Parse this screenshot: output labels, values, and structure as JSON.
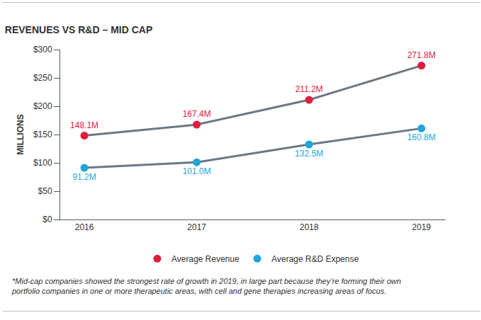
{
  "chart_data": {
    "type": "line",
    "title": "REVENUES VS R&D – MID CAP",
    "y_label": "MILLIONS",
    "categories": [
      "2016",
      "2017",
      "2018",
      "2019"
    ],
    "series": [
      {
        "name": "Average Revenue",
        "color": "#e31b3c",
        "marker": "circle",
        "values": [
          148.1,
          167.4,
          211.2,
          271.8
        ],
        "value_labels": [
          "148.1M",
          "167.4M",
          "211.2M",
          "271.8M"
        ]
      },
      {
        "name": "Average R&D Expense",
        "color": "#1ba6dc",
        "marker": "circle",
        "values": [
          91.2,
          101.0,
          132.5,
          160.8
        ],
        "value_labels": [
          "91.2M",
          "101.0M",
          "132.5M",
          "160.8M"
        ]
      }
    ],
    "ylim": [
      0,
      300
    ],
    "yticks": [
      {
        "value": 0,
        "label": "$0"
      },
      {
        "value": 50,
        "label": "$50"
      },
      {
        "value": 100,
        "label": "$100"
      },
      {
        "value": 150,
        "label": "$150"
      },
      {
        "value": 200,
        "label": "$200"
      },
      {
        "value": 250,
        "label": "$250"
      },
      {
        "value": 300,
        "label": "$300"
      }
    ],
    "grid": false,
    "data_labels": true,
    "legend": "bottom",
    "annotations": [
      "*Mid-cap companies showed the strongest rate of growth in 2019, in large part because they’re forming their own portfolio companies in one or more therapeutic areas, with cell and gene therapies increasing areas of focus."
    ]
  }
}
